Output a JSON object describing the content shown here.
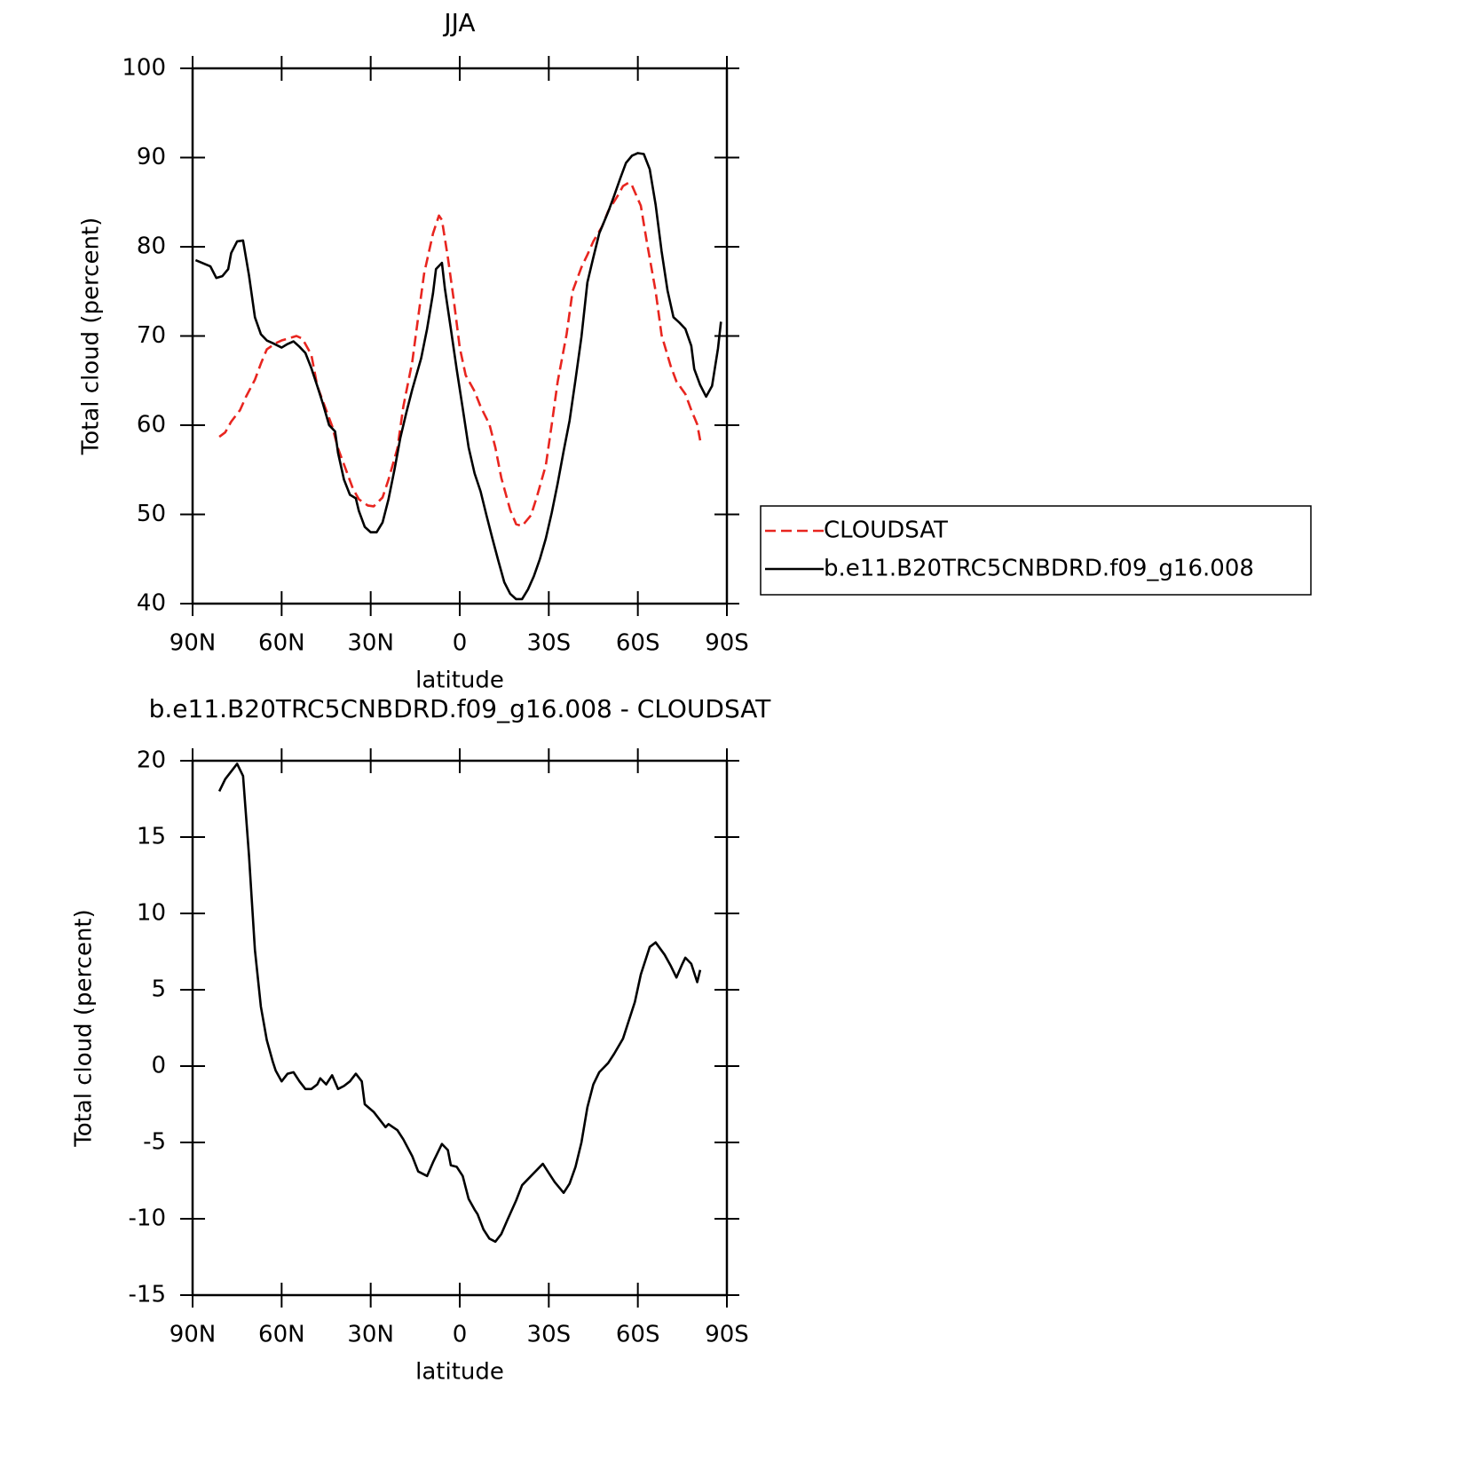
{
  "chart_data": [
    {
      "type": "line",
      "title": "JJA",
      "xlabel": "latitude",
      "ylabel": "Total cloud (percent)",
      "xlim": [
        90,
        -90
      ],
      "xticks": [
        {
          "value": 90,
          "label": "90N"
        },
        {
          "value": 60,
          "label": "60N"
        },
        {
          "value": 30,
          "label": "30N"
        },
        0,
        {
          "value": -30,
          "label": "30S"
        },
        {
          "value": -60,
          "label": "60S"
        },
        {
          "value": -90,
          "label": "90S"
        }
      ],
      "ylim": [
        40,
        100
      ],
      "yticks": [
        40,
        50,
        60,
        70,
        80,
        90,
        100
      ],
      "legend": "right",
      "series": [
        {
          "name": "CLOUDSAT",
          "color": "#e8251f",
          "style": "dashed",
          "x": [
            81,
            79,
            77,
            74,
            72,
            69,
            67,
            65,
            62,
            60,
            57,
            55,
            53,
            50,
            48,
            45,
            43,
            41,
            38,
            36,
            34,
            31,
            29,
            26,
            24,
            21,
            19,
            16,
            14,
            12,
            9,
            7,
            6,
            4,
            2,
            0,
            -2,
            -5,
            -7,
            -10,
            -12,
            -14,
            -17,
            -19,
            -21,
            -24,
            -26,
            -29,
            -31,
            -33,
            -36,
            -38,
            -41,
            -43,
            -45,
            -48,
            -50,
            -53,
            -55,
            -57,
            -58,
            -61,
            -63,
            -66,
            -68,
            -71,
            -73,
            -76,
            -78,
            -80,
            -81
          ],
          "values": [
            58.7,
            59.2,
            60.4,
            61.7,
            63.2,
            65.1,
            66.9,
            68.5,
            69.2,
            69.5,
            69.8,
            70.0,
            69.7,
            67.9,
            64.4,
            61.7,
            59.9,
            57.4,
            54.7,
            52.9,
            51.7,
            51.0,
            50.9,
            51.9,
            53.9,
            57.4,
            62.1,
            67.1,
            72.1,
            77.0,
            81.5,
            83.5,
            83.0,
            78.8,
            74.0,
            68.7,
            65.6,
            63.8,
            62.1,
            60.1,
            57.5,
            54.1,
            50.5,
            48.9,
            48.7,
            49.9,
            52.0,
            55.5,
            60.1,
            64.9,
            70.2,
            75.0,
            77.7,
            79.1,
            80.6,
            82.3,
            84.0,
            85.6,
            86.8,
            87.2,
            86.9,
            84.6,
            80.6,
            75.0,
            70.1,
            66.7,
            64.9,
            63.5,
            61.7,
            60.1,
            58.3
          ]
        },
        {
          "name": "b.e11.B20TRC5CNBDRD.f09_g16.008",
          "color": "#000000",
          "style": "solid",
          "x": [
            89,
            84,
            82,
            80,
            78,
            77,
            75,
            73,
            71,
            69,
            67,
            65,
            63,
            60,
            58,
            56,
            54,
            52,
            50,
            48,
            46,
            44,
            42,
            41,
            39,
            37,
            35,
            34,
            32,
            30,
            28,
            26,
            24,
            22,
            20,
            18,
            16,
            13,
            11,
            9,
            8,
            6,
            5,
            3,
            1,
            -1,
            -3,
            -5,
            -7,
            -9,
            -11,
            -13,
            -15,
            -17,
            -19,
            -21,
            -23,
            -25,
            -27,
            -29,
            -31,
            -33,
            -35,
            -37,
            -39,
            -41,
            -43,
            -45,
            -47,
            -50,
            -52,
            -54,
            -56,
            -58,
            -60,
            -62,
            -64,
            -66,
            -68,
            -70,
            -72,
            -74,
            -76,
            -78,
            -79,
            -81,
            -83,
            -85,
            -87,
            -88
          ],
          "values": [
            78.5,
            77.8,
            76.5,
            76.7,
            77.5,
            79.3,
            80.6,
            80.7,
            76.8,
            72.1,
            70.2,
            69.5,
            69.2,
            68.7,
            69.1,
            69.4,
            68.8,
            68.1,
            66.4,
            64.4,
            62.3,
            60.0,
            59.3,
            56.9,
            53.9,
            52.2,
            51.8,
            50.4,
            48.6,
            48.0,
            48.0,
            49.1,
            51.7,
            55.0,
            58.6,
            61.4,
            64.0,
            67.5,
            70.8,
            74.8,
            77.5,
            78.2,
            75.3,
            70.8,
            66.2,
            61.9,
            57.5,
            54.6,
            52.6,
            49.9,
            47.3,
            44.8,
            42.4,
            41.1,
            40.5,
            40.5,
            41.6,
            43.1,
            45.0,
            47.3,
            50.2,
            53.5,
            57.1,
            60.5,
            65.1,
            69.9,
            76.0,
            78.8,
            81.5,
            83.9,
            85.7,
            87.6,
            89.4,
            90.2,
            90.5,
            90.4,
            88.7,
            84.7,
            79.5,
            75.1,
            72.1,
            71.5,
            70.8,
            68.9,
            66.3,
            64.5,
            63.2,
            64.4,
            68.6,
            71.6
          ]
        }
      ]
    },
    {
      "type": "line",
      "title": "b.e11.B20TRC5CNBDRD.f09_g16.008 - CLOUDSAT",
      "xlabel": "latitude",
      "ylabel": "Total cloud (percent)",
      "xlim": [
        90,
        -90
      ],
      "xticks": [
        {
          "value": 90,
          "label": "90N"
        },
        {
          "value": 60,
          "label": "60N"
        },
        {
          "value": 30,
          "label": "30N"
        },
        0,
        {
          "value": -30,
          "label": "30S"
        },
        {
          "value": -60,
          "label": "60S"
        },
        {
          "value": -90,
          "label": "90S"
        }
      ],
      "ylim": [
        -15,
        20
      ],
      "yticks": [
        -15,
        -10,
        -5,
        0,
        5,
        10,
        15,
        20
      ],
      "series": [
        {
          "color": "#000000",
          "style": "solid",
          "x": [
            81,
            79,
            75,
            73,
            71,
            69,
            67,
            65,
            63,
            62,
            60,
            58,
            56,
            54,
            52,
            50,
            48,
            47,
            45,
            43,
            41,
            39,
            37,
            35,
            33,
            32,
            29,
            27,
            25,
            24,
            21,
            19,
            16,
            14,
            11,
            9,
            7,
            6,
            4,
            3,
            1,
            -1,
            -3,
            -5,
            -6,
            -8,
            -10,
            -12,
            -14,
            -16,
            -19,
            -21,
            -24,
            -26,
            -28,
            -30,
            -32,
            -35,
            -37,
            -39,
            -41,
            -43,
            -45,
            -47,
            -50,
            -52,
            -55,
            -57,
            -59,
            -61,
            -64,
            -66,
            -69,
            -71,
            -73,
            -75,
            -76,
            -78,
            -80,
            -81
          ],
          "values": [
            18.0,
            18.8,
            19.8,
            19.0,
            13.8,
            7.6,
            3.9,
            1.7,
            0.3,
            -0.3,
            -1.0,
            -0.5,
            -0.4,
            -1.0,
            -1.5,
            -1.5,
            -1.2,
            -0.8,
            -1.2,
            -0.6,
            -1.5,
            -1.3,
            -1.0,
            -0.5,
            -1.0,
            -2.5,
            -3.0,
            -3.5,
            -4.0,
            -3.8,
            -4.2,
            -4.8,
            -5.9,
            -6.9,
            -7.2,
            -6.3,
            -5.5,
            -5.1,
            -5.5,
            -6.5,
            -6.6,
            -7.2,
            -8.7,
            -9.4,
            -9.7,
            -10.7,
            -11.3,
            -11.5,
            -11.0,
            -10.1,
            -8.8,
            -7.8,
            -7.2,
            -6.8,
            -6.4,
            -7.0,
            -7.6,
            -8.3,
            -7.7,
            -6.6,
            -5.0,
            -2.7,
            -1.2,
            -0.4,
            0.2,
            0.8,
            1.8,
            3.0,
            4.2,
            6.0,
            7.8,
            8.1,
            7.3,
            6.6,
            5.8,
            6.7,
            7.1,
            6.7,
            5.5,
            6.3
          ]
        }
      ]
    }
  ]
}
